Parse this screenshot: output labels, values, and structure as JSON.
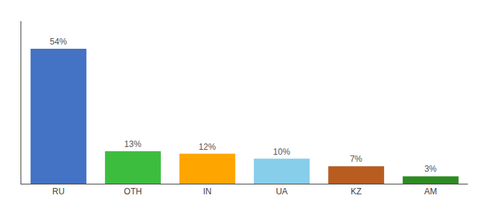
{
  "chart_data": {
    "type": "bar",
    "categories": [
      "RU",
      "OTH",
      "IN",
      "UA",
      "KZ",
      "AM"
    ],
    "values": [
      54,
      13,
      12,
      10,
      7,
      3
    ],
    "value_labels": [
      "54%",
      "13%",
      "12%",
      "10%",
      "7%",
      "3%"
    ],
    "colors": [
      "#4472C4",
      "#3DBD3D",
      "#FFA500",
      "#87CEEB",
      "#B85C20",
      "#2E8B22"
    ],
    "ylim": [
      0,
      65
    ],
    "grid": false,
    "data_labels": true,
    "tick_labels": "x"
  }
}
